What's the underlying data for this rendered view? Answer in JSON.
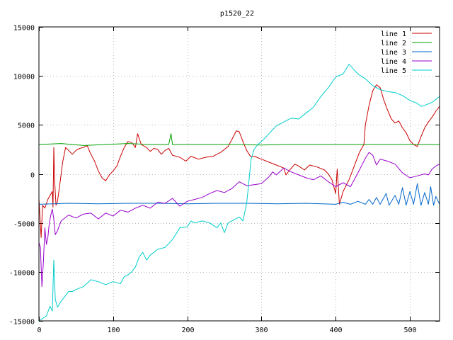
{
  "chart_data": {
    "type": "line",
    "title": "p1520_22",
    "xlabel": "",
    "ylabel": "",
    "xlim": [
      0,
      540
    ],
    "ylim": [
      -15000,
      15000
    ],
    "xticks": [
      0,
      100,
      200,
      300,
      400,
      500
    ],
    "yticks": [
      -15000,
      -10000,
      -5000,
      0,
      5000,
      10000,
      15000
    ],
    "grid": true,
    "legend_position": "top-right",
    "series": [
      {
        "name": "line 1",
        "color": "#cc0000",
        "points": [
          [
            0,
            -2500
          ],
          [
            3,
            -6500
          ],
          [
            5,
            -3200
          ],
          [
            8,
            -3500
          ],
          [
            12,
            -2600
          ],
          [
            15,
            -2200
          ],
          [
            18,
            -1800
          ],
          [
            19,
            -3400
          ],
          [
            20,
            2700
          ],
          [
            21,
            -400
          ],
          [
            23,
            -3200
          ],
          [
            25,
            -2800
          ],
          [
            28,
            -1200
          ],
          [
            32,
            1200
          ],
          [
            36,
            2700
          ],
          [
            40,
            2400
          ],
          [
            45,
            2000
          ],
          [
            50,
            2400
          ],
          [
            55,
            2600
          ],
          [
            60,
            2700
          ],
          [
            65,
            2900
          ],
          [
            70,
            2000
          ],
          [
            75,
            1300
          ],
          [
            80,
            300
          ],
          [
            85,
            -400
          ],
          [
            90,
            -700
          ],
          [
            95,
            -100
          ],
          [
            100,
            300
          ],
          [
            105,
            800
          ],
          [
            110,
            1800
          ],
          [
            115,
            2700
          ],
          [
            120,
            3300
          ],
          [
            125,
            3200
          ],
          [
            130,
            2700
          ],
          [
            133,
            4100
          ],
          [
            138,
            3000
          ],
          [
            145,
            2700
          ],
          [
            150,
            2300
          ],
          [
            155,
            2600
          ],
          [
            160,
            2500
          ],
          [
            165,
            2000
          ],
          [
            170,
            2400
          ],
          [
            175,
            2600
          ],
          [
            180,
            1900
          ],
          [
            190,
            1700
          ],
          [
            198,
            1300
          ],
          [
            205,
            1800
          ],
          [
            215,
            1500
          ],
          [
            225,
            1700
          ],
          [
            235,
            1800
          ],
          [
            245,
            2200
          ],
          [
            255,
            2800
          ],
          [
            260,
            3500
          ],
          [
            266,
            4400
          ],
          [
            270,
            4300
          ],
          [
            275,
            3300
          ],
          [
            280,
            2400
          ],
          [
            285,
            1800
          ],
          [
            290,
            1800
          ],
          [
            300,
            1500
          ],
          [
            310,
            1200
          ],
          [
            320,
            900
          ],
          [
            330,
            600
          ],
          [
            333,
            -100
          ],
          [
            338,
            400
          ],
          [
            345,
            1000
          ],
          [
            350,
            800
          ],
          [
            358,
            400
          ],
          [
            365,
            900
          ],
          [
            375,
            700
          ],
          [
            385,
            400
          ],
          [
            390,
            0
          ],
          [
            395,
            -600
          ],
          [
            400,
            -2000
          ],
          [
            402,
            500
          ],
          [
            405,
            -3100
          ],
          [
            410,
            -1800
          ],
          [
            418,
            -600
          ],
          [
            425,
            800
          ],
          [
            432,
            2200
          ],
          [
            438,
            3000
          ],
          [
            440,
            5000
          ],
          [
            445,
            7000
          ],
          [
            450,
            8500
          ],
          [
            455,
            9100
          ],
          [
            460,
            8800
          ],
          [
            465,
            7500
          ],
          [
            470,
            6500
          ],
          [
            475,
            5600
          ],
          [
            480,
            5200
          ],
          [
            485,
            5400
          ],
          [
            490,
            4700
          ],
          [
            495,
            4200
          ],
          [
            500,
            3400
          ],
          [
            505,
            3000
          ],
          [
            510,
            2800
          ],
          [
            515,
            3800
          ],
          [
            520,
            4700
          ],
          [
            525,
            5300
          ],
          [
            530,
            5800
          ],
          [
            535,
            6400
          ],
          [
            540,
            6900
          ]
        ]
      },
      {
        "name": "line 2",
        "color": "#00a000",
        "points": [
          [
            0,
            3000
          ],
          [
            30,
            3100
          ],
          [
            60,
            2900
          ],
          [
            90,
            3000
          ],
          [
            120,
            3100
          ],
          [
            150,
            3000
          ],
          [
            175,
            3000
          ],
          [
            178,
            4100
          ],
          [
            180,
            3000
          ],
          [
            210,
            3000
          ],
          [
            240,
            3000
          ],
          [
            270,
            3000
          ],
          [
            300,
            2950
          ],
          [
            330,
            3000
          ],
          [
            360,
            3000
          ],
          [
            390,
            3000
          ],
          [
            420,
            3000
          ],
          [
            450,
            3000
          ],
          [
            480,
            3000
          ],
          [
            510,
            3000
          ],
          [
            540,
            3000
          ]
        ]
      },
      {
        "name": "line 3",
        "color": "#0066cc",
        "points": [
          [
            0,
            -3100
          ],
          [
            40,
            -3000
          ],
          [
            80,
            -3050
          ],
          [
            120,
            -3000
          ],
          [
            160,
            -3000
          ],
          [
            200,
            -3050
          ],
          [
            240,
            -3000
          ],
          [
            280,
            -3000
          ],
          [
            320,
            -3050
          ],
          [
            360,
            -3000
          ],
          [
            400,
            -3100
          ],
          [
            410,
            -2900
          ],
          [
            420,
            -3100
          ],
          [
            430,
            -2800
          ],
          [
            440,
            -3100
          ],
          [
            445,
            -2600
          ],
          [
            450,
            -3100
          ],
          [
            455,
            -2400
          ],
          [
            460,
            -3100
          ],
          [
            468,
            -2000
          ],
          [
            472,
            -3200
          ],
          [
            480,
            -2200
          ],
          [
            485,
            -3100
          ],
          [
            490,
            -1400
          ],
          [
            495,
            -3200
          ],
          [
            500,
            -1800
          ],
          [
            505,
            -3100
          ],
          [
            510,
            -1000
          ],
          [
            515,
            -3200
          ],
          [
            520,
            -1900
          ],
          [
            525,
            -3100
          ],
          [
            528,
            -1300
          ],
          [
            532,
            -3200
          ],
          [
            535,
            -2300
          ],
          [
            540,
            -3100
          ]
        ]
      },
      {
        "name": "line 4",
        "color": "#9900cc",
        "points": [
          [
            0,
            -7000
          ],
          [
            2,
            -7500
          ],
          [
            4,
            -11500
          ],
          [
            6,
            -9000
          ],
          [
            8,
            -5500
          ],
          [
            10,
            -7200
          ],
          [
            12,
            -6500
          ],
          [
            14,
            -5000
          ],
          [
            16,
            -4200
          ],
          [
            18,
            -3600
          ],
          [
            20,
            -4600
          ],
          [
            22,
            -6200
          ],
          [
            25,
            -5800
          ],
          [
            30,
            -4800
          ],
          [
            40,
            -4200
          ],
          [
            50,
            -4500
          ],
          [
            60,
            -4100
          ],
          [
            70,
            -4000
          ],
          [
            80,
            -4600
          ],
          [
            90,
            -4000
          ],
          [
            100,
            -4300
          ],
          [
            110,
            -3700
          ],
          [
            120,
            -3900
          ],
          [
            130,
            -3500
          ],
          [
            140,
            -3200
          ],
          [
            150,
            -3500
          ],
          [
            160,
            -2900
          ],
          [
            170,
            -3000
          ],
          [
            180,
            -2500
          ],
          [
            190,
            -3300
          ],
          [
            200,
            -2800
          ],
          [
            210,
            -2600
          ],
          [
            220,
            -2400
          ],
          [
            230,
            -2000
          ],
          [
            240,
            -1700
          ],
          [
            250,
            -1900
          ],
          [
            260,
            -1500
          ],
          [
            270,
            -800
          ],
          [
            280,
            -1200
          ],
          [
            290,
            -1100
          ],
          [
            300,
            -1000
          ],
          [
            310,
            -300
          ],
          [
            315,
            200
          ],
          [
            320,
            -100
          ],
          [
            330,
            600
          ],
          [
            340,
            200
          ],
          [
            350,
            -100
          ],
          [
            360,
            -400
          ],
          [
            370,
            -600
          ],
          [
            380,
            -200
          ],
          [
            390,
            -800
          ],
          [
            400,
            -1300
          ],
          [
            410,
            -900
          ],
          [
            420,
            -1300
          ],
          [
            430,
            100
          ],
          [
            440,
            1600
          ],
          [
            445,
            2200
          ],
          [
            450,
            1900
          ],
          [
            455,
            900
          ],
          [
            460,
            1500
          ],
          [
            470,
            1300
          ],
          [
            480,
            1000
          ],
          [
            490,
            100
          ],
          [
            500,
            -400
          ],
          [
            505,
            -300
          ],
          [
            510,
            -200
          ],
          [
            520,
            0
          ],
          [
            525,
            -100
          ],
          [
            530,
            500
          ],
          [
            535,
            800
          ],
          [
            540,
            1000
          ]
        ]
      },
      {
        "name": "line 5",
        "color": "#00cccc",
        "points": [
          [
            0,
            -15000
          ],
          [
            10,
            -14500
          ],
          [
            15,
            -13500
          ],
          [
            18,
            -14000
          ],
          [
            20,
            -8800
          ],
          [
            22,
            -12800
          ],
          [
            25,
            -13600
          ],
          [
            30,
            -13000
          ],
          [
            35,
            -12500
          ],
          [
            40,
            -12000
          ],
          [
            45,
            -12000
          ],
          [
            50,
            -11800
          ],
          [
            60,
            -11500
          ],
          [
            70,
            -10800
          ],
          [
            80,
            -11000
          ],
          [
            90,
            -11300
          ],
          [
            100,
            -11000
          ],
          [
            110,
            -11200
          ],
          [
            115,
            -10500
          ],
          [
            120,
            -10300
          ],
          [
            125,
            -10000
          ],
          [
            130,
            -9500
          ],
          [
            135,
            -8500
          ],
          [
            140,
            -8000
          ],
          [
            145,
            -8800
          ],
          [
            150,
            -8300
          ],
          [
            160,
            -7700
          ],
          [
            170,
            -7500
          ],
          [
            180,
            -6700
          ],
          [
            190,
            -5500
          ],
          [
            200,
            -5400
          ],
          [
            205,
            -4800
          ],
          [
            210,
            -5000
          ],
          [
            220,
            -4800
          ],
          [
            230,
            -5000
          ],
          [
            240,
            -5500
          ],
          [
            245,
            -5000
          ],
          [
            250,
            -6000
          ],
          [
            255,
            -5000
          ],
          [
            260,
            -4800
          ],
          [
            270,
            -4400
          ],
          [
            275,
            -4800
          ],
          [
            280,
            -3000
          ],
          [
            283,
            -800
          ],
          [
            286,
            1500
          ],
          [
            290,
            2500
          ],
          [
            295,
            3000
          ],
          [
            300,
            3300
          ],
          [
            305,
            3700
          ],
          [
            310,
            4100
          ],
          [
            320,
            4900
          ],
          [
            330,
            5300
          ],
          [
            340,
            5700
          ],
          [
            350,
            5600
          ],
          [
            360,
            6200
          ],
          [
            370,
            6800
          ],
          [
            380,
            7900
          ],
          [
            390,
            8800
          ],
          [
            400,
            9900
          ],
          [
            410,
            10200
          ],
          [
            418,
            11200
          ],
          [
            425,
            10600
          ],
          [
            430,
            10200
          ],
          [
            440,
            9700
          ],
          [
            450,
            9000
          ],
          [
            460,
            8600
          ],
          [
            470,
            8400
          ],
          [
            480,
            8300
          ],
          [
            490,
            8000
          ],
          [
            500,
            7500
          ],
          [
            510,
            7200
          ],
          [
            515,
            6900
          ],
          [
            520,
            7000
          ],
          [
            530,
            7300
          ],
          [
            540,
            7900
          ]
        ]
      }
    ]
  }
}
